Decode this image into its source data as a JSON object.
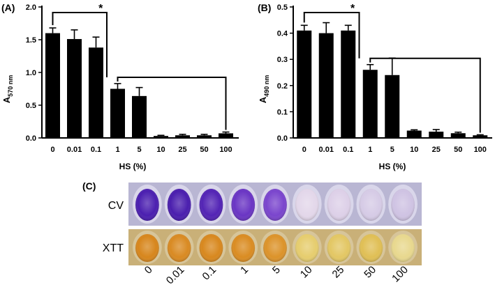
{
  "chart_data": [
    {
      "panel_label": "(A)",
      "type": "bar",
      "categories": [
        "0",
        "0.01",
        "0.1",
        "1",
        "5",
        "10",
        "25",
        "50",
        "100"
      ],
      "values": [
        1.6,
        1.51,
        1.38,
        0.75,
        0.64,
        0.03,
        0.04,
        0.04,
        0.07
      ],
      "errors": [
        0.08,
        0.14,
        0.16,
        0.08,
        0.13,
        0.01,
        0.015,
        0.015,
        0.02
      ],
      "ylabel_main": "A",
      "ylabel_sub": "570 nm",
      "xlabel": "HS (%)",
      "ylim": [
        0,
        2.0
      ],
      "yticks": [
        "0.0",
        "0.5",
        "1.0",
        "1.5",
        "2.0"
      ],
      "significance": "*"
    },
    {
      "panel_label": "(B)",
      "type": "bar",
      "categories": [
        "0",
        "0.01",
        "0.1",
        "1",
        "5",
        "10",
        "25",
        "50",
        "100"
      ],
      "values": [
        0.41,
        0.4,
        0.41,
        0.26,
        0.24,
        0.028,
        0.024,
        0.018,
        0.01
      ],
      "errors": [
        0.02,
        0.04,
        0.02,
        0.02,
        0.065,
        0.003,
        0.008,
        0.004,
        0.002
      ],
      "ylabel_main": "A",
      "ylabel_sub": "490 nm",
      "xlabel": "HS (%)",
      "ylim": [
        0,
        0.5
      ],
      "yticks": [
        "0.0",
        "0.1",
        "0.2",
        "0.3",
        "0.4",
        "0.5"
      ],
      "significance": "*"
    }
  ],
  "panel_c": {
    "label": "(C)",
    "row_labels": [
      "CV",
      "XTT"
    ],
    "concentrations": [
      "0",
      "0.01",
      "0.1",
      "1",
      "5",
      "10",
      "25",
      "50",
      "100"
    ],
    "cv_colors": [
      "#4b1fb0",
      "#4a1eae",
      "#5324b5",
      "#6a35c4",
      "#7a45cd",
      "#e3d7ea",
      "#ddd0e8",
      "#d6cbe6",
      "#cfc3e3"
    ],
    "xtt_colors": [
      "#d7861c",
      "#d98a22",
      "#d8881e",
      "#da8c22",
      "#dc932a",
      "#e6cd6e",
      "#e3c764",
      "#e0bf55",
      "#e8d88e"
    ],
    "cv_tray_color": "#b9b6d3",
    "xtt_tray_color": "#c9b078"
  }
}
